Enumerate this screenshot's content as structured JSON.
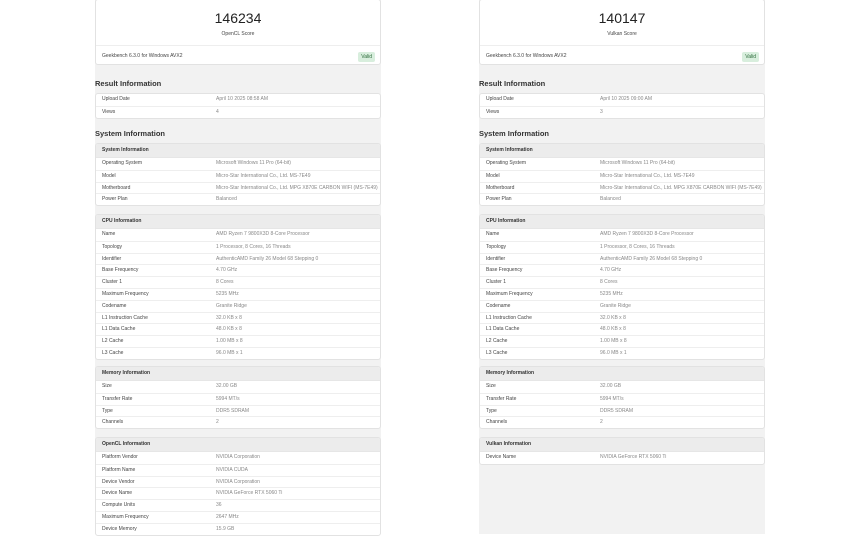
{
  "left": {
    "score": "146234",
    "score_label": "OpenCL Score",
    "version": "Geekbench 6.3.0 for Windows AVX2",
    "badge": "Valid",
    "result_heading": "Result Information",
    "result_rows": [
      [
        "Upload Date",
        "April 10 2025 08:58 AM"
      ],
      [
        "Views",
        "4"
      ]
    ],
    "system_heading": "System Information",
    "sections": [
      {
        "title": "System Information",
        "rows": [
          [
            "Operating System",
            "Microsoft Windows 11 Pro (64-bit)"
          ],
          [
            "Model",
            "Micro-Star International Co., Ltd. MS-7E49"
          ],
          [
            "Motherboard",
            "Micro-Star International Co., Ltd. MPG X870E CARBON WIFI (MS-7E49)"
          ],
          [
            "Power Plan",
            "Balanced"
          ]
        ]
      },
      {
        "title": "CPU Information",
        "rows": [
          [
            "Name",
            "AMD Ryzen 7 9800X3D 8-Core Processor"
          ],
          [
            "Topology",
            "1 Processor, 8 Cores, 16 Threads"
          ],
          [
            "Identifier",
            "AuthenticAMD Family 26 Model 68 Stepping 0"
          ],
          [
            "Base Frequency",
            "4.70 GHz"
          ],
          [
            "Cluster 1",
            "8 Cores"
          ],
          [
            "Maximum Frequency",
            "5235 MHz"
          ],
          [
            "Codename",
            "Granite Ridge"
          ],
          [
            "L1 Instruction Cache",
            "32.0 KB x 8"
          ],
          [
            "L1 Data Cache",
            "48.0 KB x 8"
          ],
          [
            "L2 Cache",
            "1.00 MB x 8"
          ],
          [
            "L3 Cache",
            "96.0 MB x 1"
          ]
        ]
      },
      {
        "title": "Memory Information",
        "rows": [
          [
            "Size",
            "32.00 GB"
          ],
          [
            "Transfer Rate",
            "5994 MT/s"
          ],
          [
            "Type",
            "DDR5 SDRAM"
          ],
          [
            "Channels",
            "2"
          ]
        ]
      },
      {
        "title": "OpenCL Information",
        "rows": [
          [
            "Platform Vendor",
            "NVIDIA Corporation"
          ],
          [
            "Platform Name",
            "NVIDIA CUDA"
          ],
          [
            "Device Vendor",
            "NVIDIA Corporation"
          ],
          [
            "Device Name",
            "NVIDIA GeForce RTX 5060 Ti"
          ],
          [
            "Compute Units",
            "36"
          ],
          [
            "Maximum Frequency",
            "2647 MHz"
          ],
          [
            "Device Memory",
            "15.9 GB"
          ]
        ]
      }
    ]
  },
  "right": {
    "score": "140147",
    "score_label": "Vulkan Score",
    "version": "Geekbench 6.3.0 for Windows AVX2",
    "badge": "Valid",
    "result_heading": "Result Information",
    "result_rows": [
      [
        "Upload Date",
        "April 10 2025 09:00 AM"
      ],
      [
        "Views",
        "3"
      ]
    ],
    "system_heading": "System Information",
    "sections": [
      {
        "title": "System Information",
        "rows": [
          [
            "Operating System",
            "Microsoft Windows 11 Pro (64-bit)"
          ],
          [
            "Model",
            "Micro-Star International Co., Ltd. MS-7E49"
          ],
          [
            "Motherboard",
            "Micro-Star International Co., Ltd. MPG X870E CARBON WIFI (MS-7E49)"
          ],
          [
            "Power Plan",
            "Balanced"
          ]
        ]
      },
      {
        "title": "CPU Information",
        "rows": [
          [
            "Name",
            "AMD Ryzen 7 9800X3D 8-Core Processor"
          ],
          [
            "Topology",
            "1 Processor, 8 Cores, 16 Threads"
          ],
          [
            "Identifier",
            "AuthenticAMD Family 26 Model 68 Stepping 0"
          ],
          [
            "Base Frequency",
            "4.70 GHz"
          ],
          [
            "Cluster 1",
            "8 Cores"
          ],
          [
            "Maximum Frequency",
            "5235 MHz"
          ],
          [
            "Codename",
            "Granite Ridge"
          ],
          [
            "L1 Instruction Cache",
            "32.0 KB x 8"
          ],
          [
            "L1 Data Cache",
            "48.0 KB x 8"
          ],
          [
            "L2 Cache",
            "1.00 MB x 8"
          ],
          [
            "L3 Cache",
            "96.0 MB x 1"
          ]
        ]
      },
      {
        "title": "Memory Information",
        "rows": [
          [
            "Size",
            "32.00 GB"
          ],
          [
            "Transfer Rate",
            "5994 MT/s"
          ],
          [
            "Type",
            "DDR5 SDRAM"
          ],
          [
            "Channels",
            "2"
          ]
        ]
      },
      {
        "title": "Vulkan Information",
        "rows": [
          [
            "Device Name",
            "NVIDIA GeForce RTX 5060 Ti"
          ]
        ]
      }
    ]
  },
  "colors": {
    "badge_bg": "#d8eedd",
    "badge_text": "#2c6b3a",
    "column_bg": "#f2f2f2"
  }
}
